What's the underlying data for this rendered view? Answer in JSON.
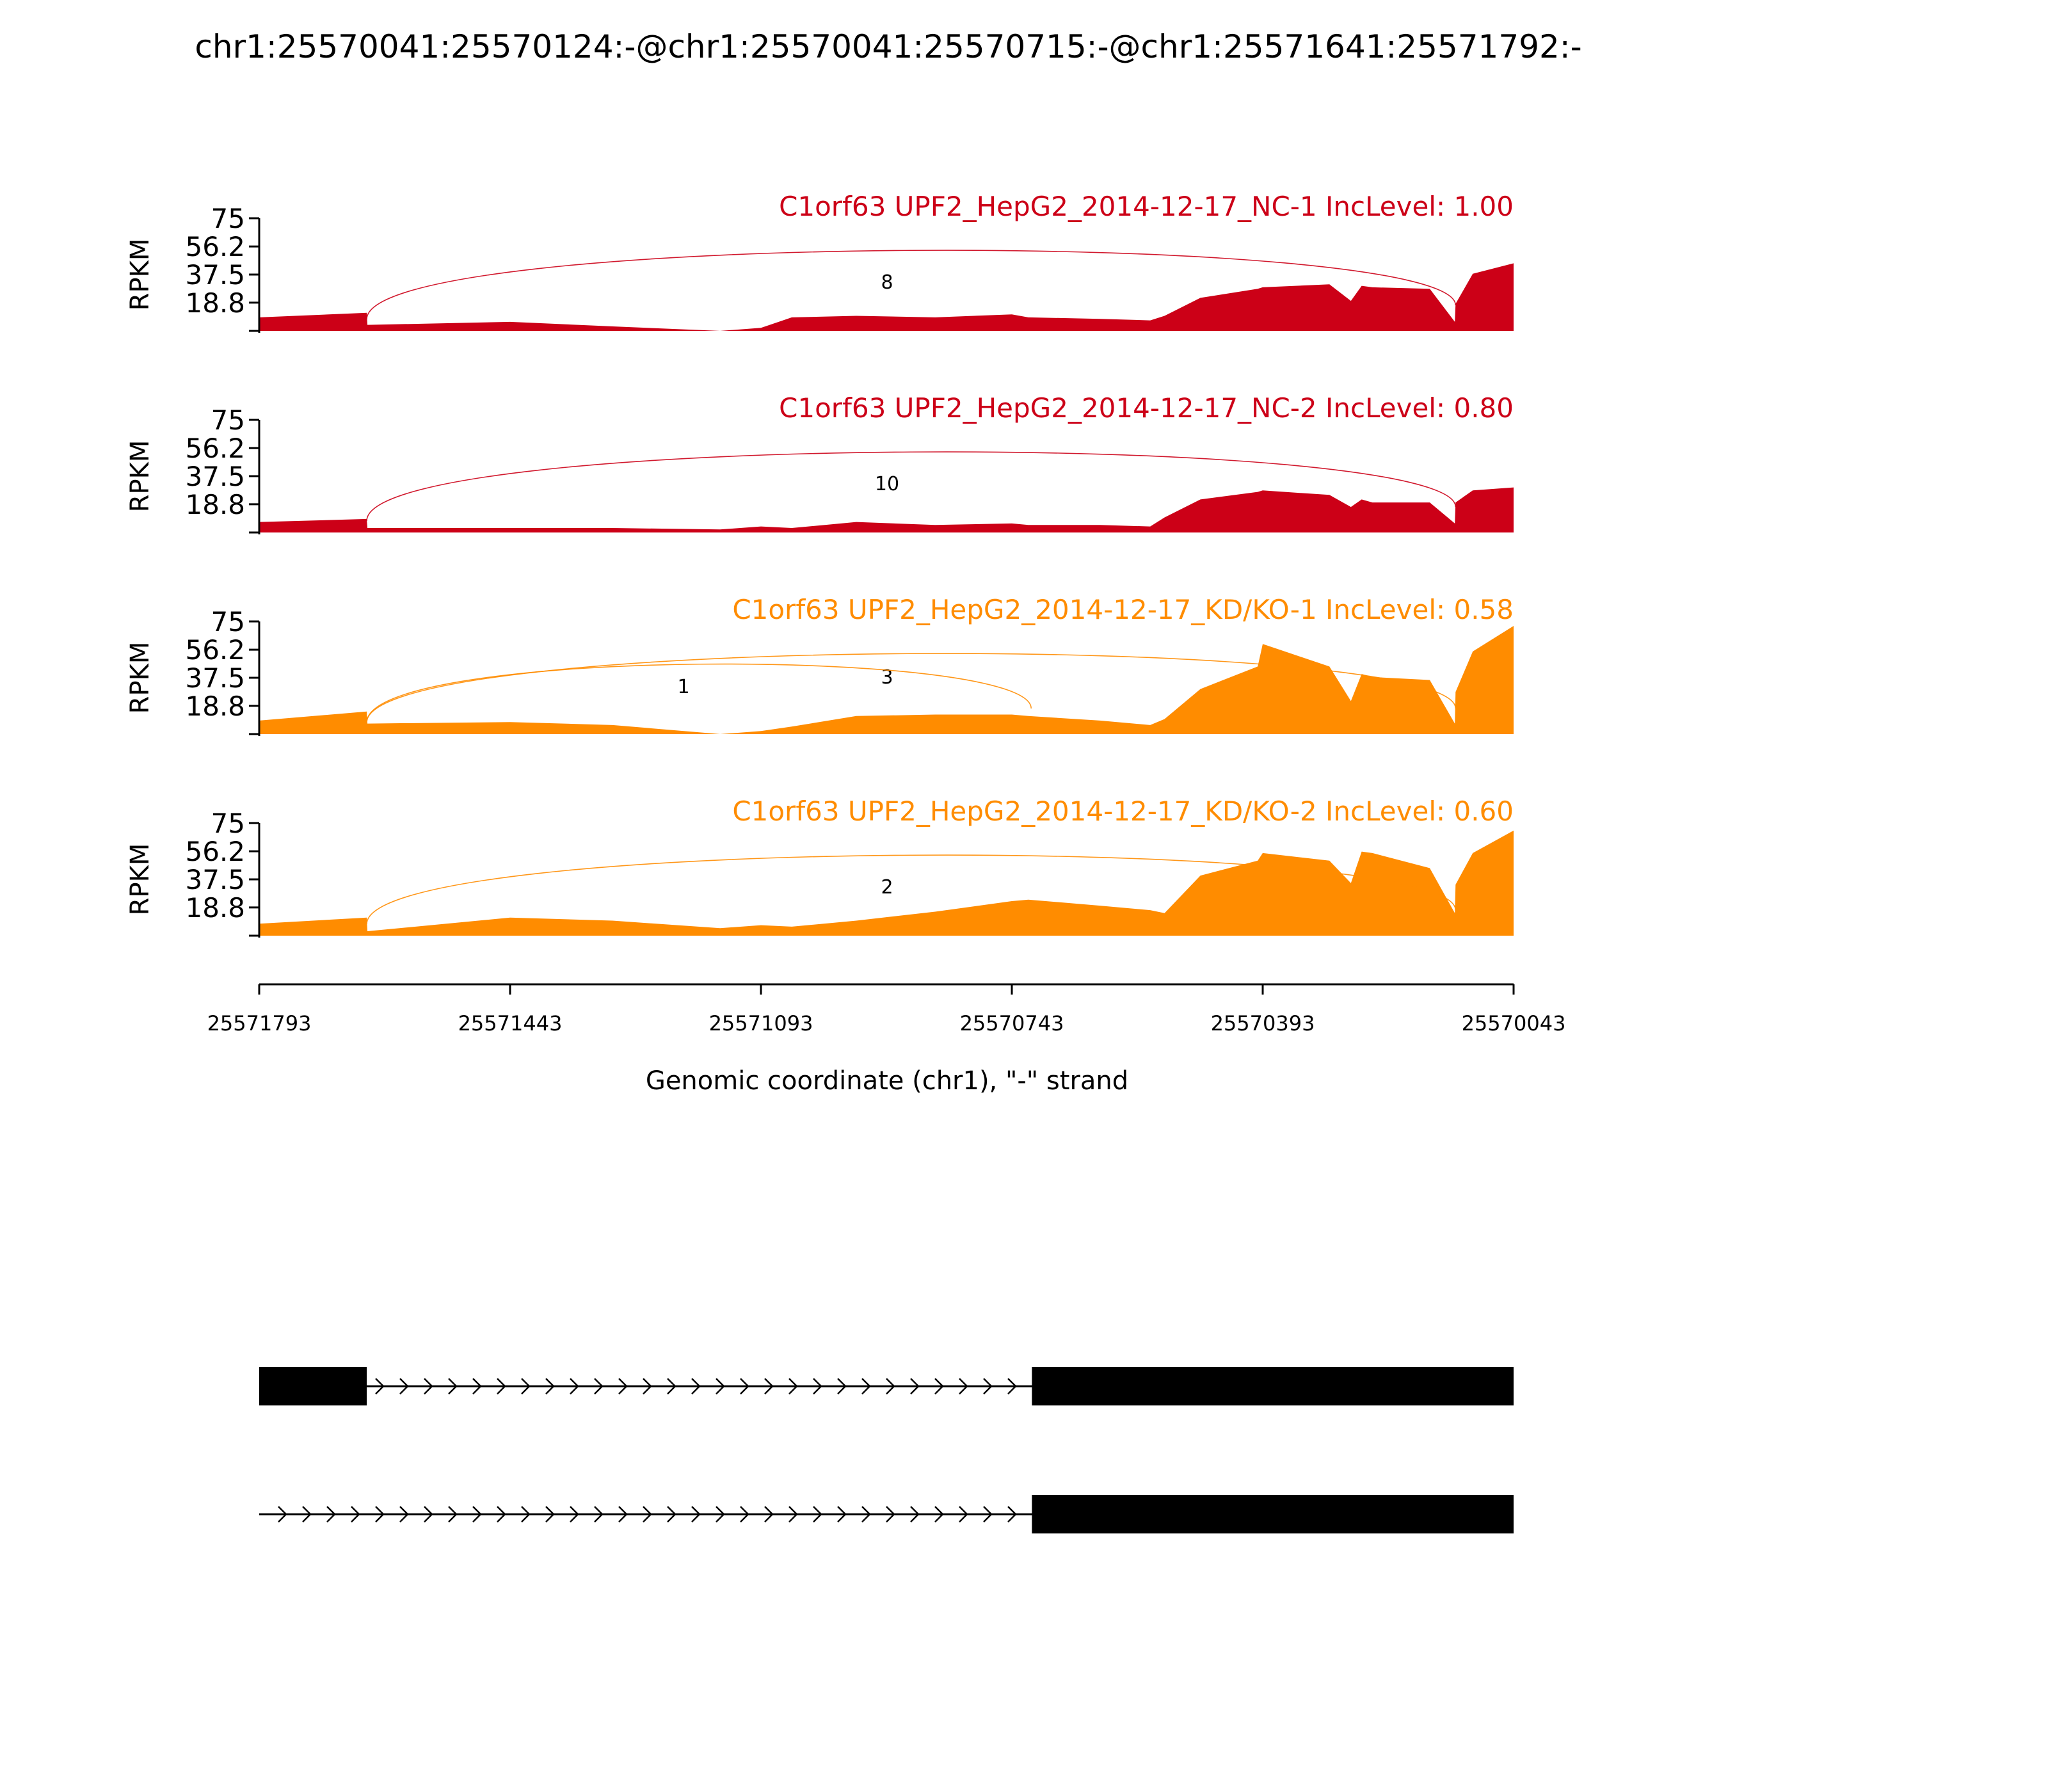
{
  "figure_title": "chr1:25570041:25570124:-@chr1:25570041:25570715:-@chr1:25571641:25571792:-",
  "colors": {
    "nc": "#cc0017",
    "kd": "#ff8c00",
    "axis": "#000000",
    "gene_model": "#000000"
  },
  "chart_data": {
    "type": "area",
    "title": "chr1:25570041:25570124:-@chr1:25570041:25570715:-@chr1:25571641:25571792:-",
    "ylabel": "RPKM",
    "xlabel": "Genomic coordinate (chr1), \"-\" strand",
    "xlim": [
      25571793,
      25570043
    ],
    "x_ticks": [
      "25571793",
      "25571443",
      "25571093",
      "25570743",
      "25570393",
      "25570043"
    ],
    "y_ticks": [
      "18.8",
      "37.5",
      "56.2",
      "75"
    ],
    "ylim": [
      0,
      75
    ],
    "grid": false,
    "x_profile": [
      25571793,
      25571643,
      25571642,
      25571443,
      25571300,
      25571150,
      25571093,
      25571050,
      25570960,
      25570850,
      25570743,
      25570720,
      25570620,
      25570550,
      25570530,
      25570480,
      25570400,
      25570393,
      25570300,
      25570270,
      25570255,
      25570240,
      25570160,
      25570125,
      25570124,
      25570100,
      25570043
    ],
    "tracks": [
      {
        "label": "C1orf63 UPF2_HepG2_2014-12-17_NC-1 IncLevel: 1.00",
        "group": "NC",
        "values": [
          9,
          12,
          4,
          6,
          3,
          0,
          2,
          9,
          10,
          9,
          11,
          9,
          8,
          7,
          10,
          22,
          28,
          29,
          31,
          20,
          30,
          29,
          28,
          6,
          18,
          38,
          45
        ],
        "junctions": [
          {
            "label": "8",
            "from": 25571643,
            "to": 25570124
          }
        ]
      },
      {
        "label": "C1orf63 UPF2_HepG2_2014-12-17_NC-2 IncLevel: 0.80",
        "group": "NC",
        "values": [
          7,
          9,
          3,
          3,
          3,
          2,
          4,
          3,
          7,
          5,
          6,
          5,
          5,
          4,
          10,
          22,
          27,
          28,
          25,
          17,
          22,
          20,
          20,
          6,
          20,
          28,
          30
        ],
        "junctions": [
          {
            "label": "10",
            "from": 25571643,
            "to": 25570124
          }
        ]
      },
      {
        "label": "C1orf63 UPF2_HepG2_2014-12-17_KD/KO-1 IncLevel: 0.58",
        "group": "KD/KO",
        "values": [
          9,
          15,
          7,
          8,
          6,
          0,
          2,
          5,
          12,
          13,
          13,
          12,
          9,
          6,
          10,
          30,
          45,
          60,
          45,
          22,
          40,
          38,
          36,
          7,
          28,
          55,
          72
        ],
        "junctions": [
          {
            "label": "3",
            "from": 25571643,
            "to": 25570124
          },
          {
            "label": "1",
            "from": 25571643,
            "to": 25570716
          }
        ]
      },
      {
        "label": "C1orf63 UPF2_HepG2_2014-12-17_KD/KO-2 IncLevel: 0.60",
        "group": "KD/KO",
        "values": [
          8,
          12,
          3,
          12,
          10,
          5,
          7,
          6,
          10,
          16,
          23,
          24,
          20,
          17,
          15,
          40,
          50,
          55,
          50,
          35,
          56,
          55,
          45,
          15,
          34,
          55,
          70
        ],
        "junctions": [
          {
            "label": "2",
            "from": 25571643,
            "to": 25570124
          }
        ]
      }
    ],
    "gene_models": [
      {
        "exons": [
          [
            25571793,
            25571643
          ],
          [
            25570715,
            25570043
          ]
        ]
      },
      {
        "exons": [
          [
            25570715,
            25570043
          ]
        ]
      }
    ]
  }
}
